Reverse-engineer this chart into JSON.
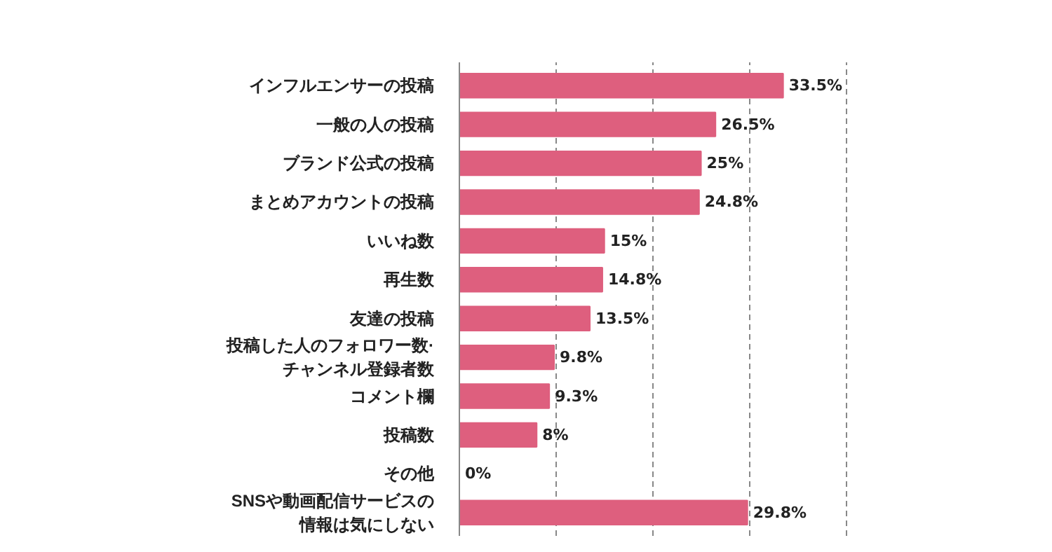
{
  "chart_data": {
    "type": "bar",
    "orientation": "horizontal",
    "categories": [
      "インフルエンサーの投稿",
      "一般の人の投稿",
      "ブランド公式の投稿",
      "まとめアカウントの投稿",
      "いいね数",
      "再生数",
      "友達の投稿",
      "投稿した人のフォロワー数·チャンネル登録者数",
      "コメント欄",
      "投稿数",
      "その他",
      "SNSや動画配信サービスの情報は気にしない"
    ],
    "values": [
      33.5,
      26.5,
      25,
      24.8,
      15,
      14.8,
      13.5,
      9.8,
      9.3,
      8,
      0,
      29.8
    ],
    "value_labels": [
      "33.5%",
      "26.5%",
      "25%",
      "24.8%",
      "15%",
      "14.8%",
      "13.5%",
      "9.8%",
      "9.3%",
      "8%",
      "0%",
      "29.8%"
    ],
    "color": "#de5f7e",
    "grid": "x",
    "tick_labels": "y"
  }
}
